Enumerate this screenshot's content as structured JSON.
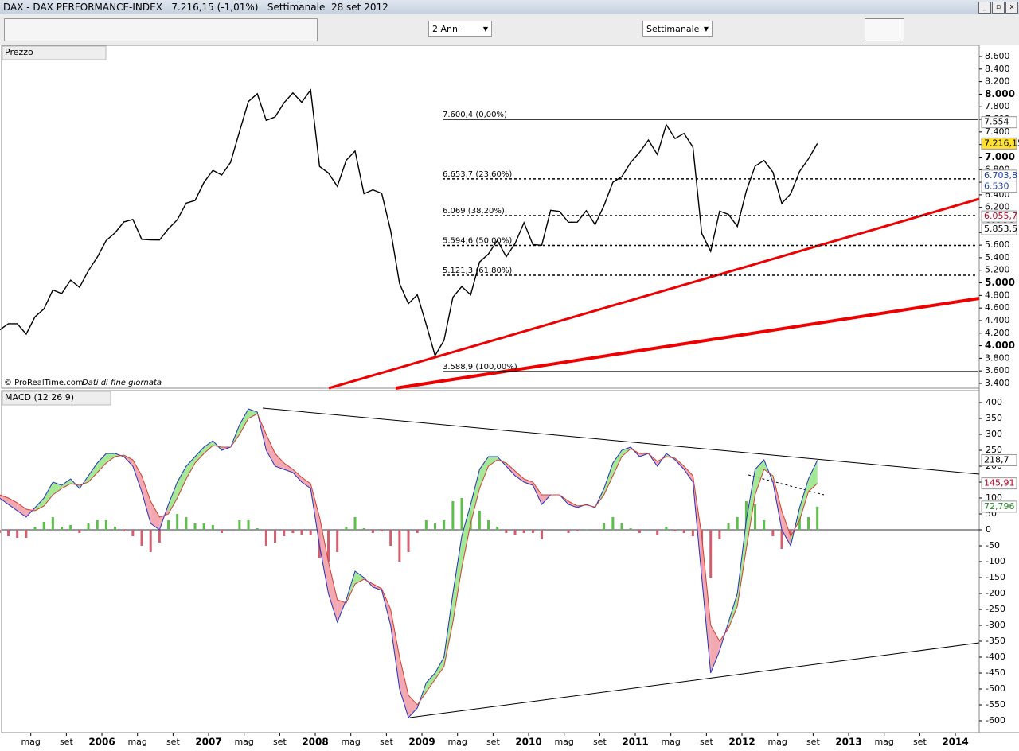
{
  "header": {
    "title": "DAX - DAX PERFORMANCE-INDEX   7.216,15 (-1,01%)   Settimanale  28 set 2012"
  },
  "toolbar": {
    "period": "2 Anni",
    "timeframe": "Settimanale"
  },
  "panels": {
    "price_label": "Prezzo",
    "macd_label": "MACD (12 26 9)",
    "source": "© ProRealTime.com",
    "note": "Dati di fine giornata"
  },
  "chart_data": [
    {
      "type": "line",
      "name": "price",
      "color": "#000000",
      "values": [
        4250,
        4350,
        4350,
        4185,
        4460,
        4586,
        4886,
        4830,
        5044,
        4929,
        5193,
        5408,
        5674,
        5796,
        5970,
        6009,
        5692,
        5683,
        5681,
        5859,
        6004,
        6268,
        6309,
        6597,
        6789,
        6715,
        6917,
        7408,
        7883,
        8007,
        7584,
        7638,
        7862,
        8020,
        7871,
        8067,
        6851,
        6748,
        6535,
        6949,
        7097,
        6418,
        6480,
        6422,
        5831,
        4988,
        4669,
        4810,
        4338,
        3843,
        4085,
        4770,
        4941,
        4809,
        5332,
        5458,
        5675,
        5415,
        5625,
        5957,
        5608,
        5598,
        6154,
        6136,
        5964,
        5966,
        6148,
        5925,
        6229,
        6601,
        6688,
        6914,
        7077,
        7272,
        7041,
        7514,
        7294,
        7376,
        7159,
        5785,
        5502,
        6141,
        6088,
        5898,
        6458,
        6856,
        6947,
        6761,
        6264,
        6416,
        6772,
        6970,
        7216
      ],
      "ylim": [
        3400,
        8600
      ],
      "yticks": [
        {
          "value": 3400,
          "label": "3.400"
        },
        {
          "value": 3600,
          "label": "3.600"
        },
        {
          "value": 3800,
          "label": "3.800"
        },
        {
          "value": 4000,
          "label": "4.000"
        },
        {
          "value": 4200,
          "label": "4.200"
        },
        {
          "value": 4400,
          "label": "4.400"
        },
        {
          "value": 4600,
          "label": "4.600"
        },
        {
          "value": 4800,
          "label": "4.800"
        },
        {
          "value": 5000,
          "label": "5.000"
        },
        {
          "value": 5200,
          "label": "5.200"
        },
        {
          "value": 5400,
          "label": "5.400"
        },
        {
          "value": 5600,
          "label": "5.600"
        },
        {
          "value": 5800,
          "label": "5.800"
        },
        {
          "value": 6000,
          "label": "6.000"
        },
        {
          "value": 6200,
          "label": "6.200"
        },
        {
          "value": 6400,
          "label": "6.400"
        },
        {
          "value": 6600,
          "label": "6.600"
        },
        {
          "value": 6800,
          "label": "6.800"
        },
        {
          "value": 7000,
          "label": "7.000"
        },
        {
          "value": 7200,
          "label": "7.200"
        },
        {
          "value": 7400,
          "label": "7.400"
        },
        {
          "value": 7600,
          "label": "7.600"
        },
        {
          "value": 7800,
          "label": "7.800"
        },
        {
          "value": 8000,
          "label": "8.000"
        },
        {
          "value": 8200,
          "label": "8.200"
        },
        {
          "value": 8400,
          "label": "8.400"
        },
        {
          "value": 8600,
          "label": "8.600"
        }
      ],
      "fib_levels": [
        {
          "value": 7600.4,
          "label": "7.600,4 (0,00%)"
        },
        {
          "value": 6653.7,
          "label": "6.653,7 (23,60%)"
        },
        {
          "value": 6069,
          "label": "6.069 (38,20%)"
        },
        {
          "value": 5594.6,
          "label": "5.594,6 (50,00%)"
        },
        {
          "value": 5121.3,
          "label": "5.121,3 (61,80%)"
        },
        {
          "value": 3588.9,
          "label": "3.588,9 (100,00%)"
        }
      ],
      "badges": [
        {
          "value": 7554,
          "label": "7.554",
          "color": "#000000",
          "bg": "#ffffff"
        },
        {
          "value": 7216.15,
          "label": "7.216,15",
          "color": "#000000",
          "bg": "#ffe033"
        },
        {
          "value": 6703.8,
          "label": "6.703,8",
          "color": "#1f3fa0",
          "bg": "#ffffff"
        },
        {
          "value": 6530,
          "label": "6.530",
          "color": "#1f3fa0",
          "bg": "#ffffff"
        },
        {
          "value": 6055.7,
          "label": "6.055,7",
          "color": "#c00020",
          "bg": "#ffffff"
        },
        {
          "value": 5853.5,
          "label": "5.853,5",
          "color": "#000000",
          "bg": "#ffffff"
        }
      ]
    },
    {
      "type": "macd",
      "name": "macd",
      "macd": [
        100,
        80,
        60,
        40,
        70,
        100,
        150,
        140,
        160,
        130,
        170,
        210,
        240,
        240,
        230,
        200,
        120,
        20,
        0,
        80,
        150,
        200,
        230,
        260,
        280,
        250,
        260,
        330,
        380,
        370,
        250,
        200,
        190,
        180,
        150,
        130,
        -50,
        -200,
        -290,
        -220,
        -130,
        -150,
        -180,
        -190,
        -300,
        -500,
        -590,
        -560,
        -480,
        -450,
        -400,
        -200,
        -20,
        80,
        190,
        230,
        230,
        200,
        170,
        150,
        140,
        80,
        110,
        110,
        80,
        70,
        80,
        70,
        130,
        210,
        250,
        260,
        230,
        240,
        200,
        240,
        220,
        190,
        150,
        -150,
        -450,
        -380,
        -290,
        -200,
        30,
        190,
        220,
        150,
        0,
        -50,
        70,
        160,
        218.7
      ],
      "signal": [
        110,
        100,
        85,
        65,
        60,
        75,
        110,
        130,
        145,
        140,
        150,
        180,
        210,
        230,
        235,
        220,
        170,
        90,
        40,
        50,
        100,
        160,
        210,
        240,
        265,
        260,
        260,
        300,
        350,
        365,
        300,
        240,
        210,
        190,
        165,
        145,
        40,
        -100,
        -220,
        -230,
        -170,
        -155,
        -170,
        -185,
        -250,
        -400,
        -520,
        -550,
        -510,
        -470,
        -430,
        -290,
        -120,
        20,
        130,
        200,
        220,
        210,
        185,
        160,
        150,
        110,
        110,
        110,
        90,
        75,
        78,
        72,
        110,
        170,
        230,
        255,
        240,
        240,
        215,
        230,
        225,
        200,
        170,
        -20,
        -300,
        -350,
        -310,
        -240,
        -60,
        110,
        190,
        170,
        60,
        -20,
        30,
        120,
        145.91
      ],
      "histogram": [
        -10,
        -20,
        -25,
        -25,
        10,
        25,
        40,
        10,
        15,
        -10,
        20,
        30,
        30,
        10,
        -5,
        -20,
        -50,
        -70,
        -40,
        30,
        50,
        40,
        20,
        20,
        15,
        -10,
        0,
        30,
        30,
        5,
        -50,
        -40,
        -20,
        -10,
        -15,
        -15,
        -90,
        -100,
        -70,
        10,
        40,
        5,
        -10,
        -5,
        -50,
        -100,
        -70,
        -10,
        30,
        20,
        30,
        90,
        100,
        60,
        60,
        30,
        10,
        -10,
        -15,
        -10,
        -10,
        -30,
        0,
        0,
        -10,
        -5,
        2,
        -2,
        20,
        40,
        20,
        5,
        -10,
        0,
        -15,
        10,
        -5,
        -10,
        -20,
        -130,
        -150,
        -30,
        20,
        40,
        90,
        80,
        30,
        -20,
        -60,
        -30,
        40,
        40,
        72.796
      ],
      "ylim": [
        -600,
        400
      ],
      "yticks": [
        400,
        350,
        300,
        250,
        200,
        150,
        100,
        50,
        0,
        -50,
        -100,
        -150,
        -200,
        -250,
        -300,
        -350,
        -400,
        -450,
        -500,
        -550,
        -600
      ],
      "badges": [
        {
          "value": 218.7,
          "label": "218,7",
          "color": "#000000",
          "bg": "#ffffff"
        },
        {
          "value": 145.91,
          "label": "145,91",
          "color": "#c00020",
          "bg": "#ffffff"
        },
        {
          "value": 72.796,
          "label": "72,796",
          "color": "#2a8a2a",
          "bg": "#ffffff"
        }
      ]
    }
  ],
  "x_axis": {
    "labels": [
      "mag",
      "set",
      "2006",
      "mag",
      "set",
      "2007",
      "mag",
      "set",
      "2008",
      "mag",
      "set",
      "2009",
      "mag",
      "set",
      "2010",
      "mag",
      "set",
      "2011",
      "mag",
      "set",
      "2012",
      "mag",
      "set",
      "2013",
      "mag",
      "set",
      "2014"
    ]
  }
}
